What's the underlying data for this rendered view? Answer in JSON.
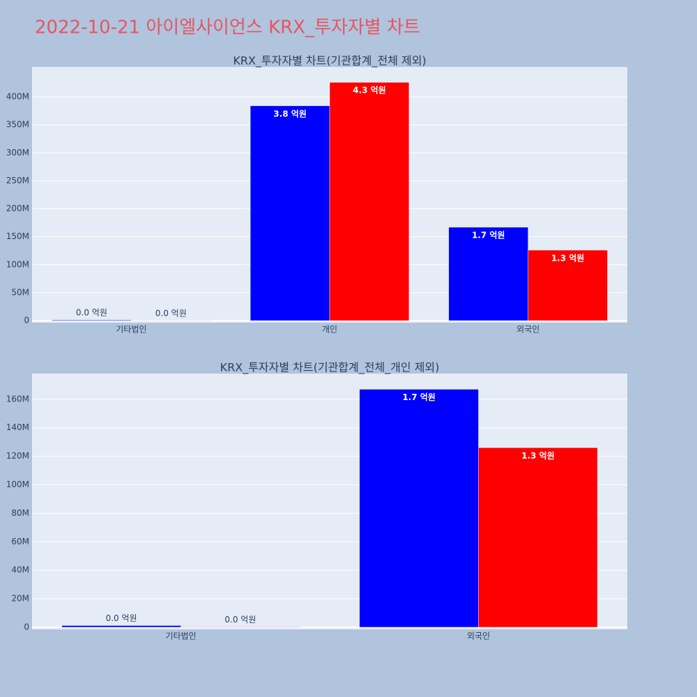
{
  "title": "2022-10-21 아이엘사이언스 KRX_투자자별 차트",
  "chart_data": [
    {
      "type": "bar",
      "title": "KRX_투자자별 차트(기관합계_전체 제외)",
      "categories": [
        "기타법인",
        "개인",
        "외국인"
      ],
      "series": [
        {
          "color": "#0000ff",
          "values": [
            1200000,
            384000000,
            167000000
          ],
          "value_labels": [
            "0.0 억원",
            "3.8 억원",
            "1.7 억원"
          ]
        },
        {
          "color": "#ff0000",
          "values": [
            300000,
            426000000,
            126000000
          ],
          "value_labels": [
            "0.0 억원",
            "4.3 억원",
            "1.3 억원"
          ]
        }
      ],
      "ylim": [
        -3700000,
        453600000
      ],
      "yticks": [
        0,
        {
          "value": 50000000,
          "label": "50M"
        },
        {
          "value": 100000000,
          "label": "100M"
        },
        {
          "value": 150000000,
          "label": "150M"
        },
        {
          "value": 200000000,
          "label": "200M"
        },
        {
          "value": 250000000,
          "label": "250M"
        },
        {
          "value": 300000000,
          "label": "300M"
        },
        {
          "value": 350000000,
          "label": "350M"
        },
        {
          "value": 400000000,
          "label": "400M"
        }
      ],
      "grid": true
    },
    {
      "type": "bar",
      "title": "KRX_투자자별 차트(기관합계_전체_개인 제외)",
      "categories": [
        "기타법인",
        "외국인"
      ],
      "series": [
        {
          "color": "#0000ff",
          "values": [
            1200000,
            167000000
          ],
          "value_labels": [
            "0.0 억원",
            "1.7 억원"
          ]
        },
        {
          "color": "#ff0000",
          "values": [
            300000,
            126000000
          ],
          "value_labels": [
            "0.0 억원",
            "1.3 억원"
          ]
        }
      ],
      "ylim": [
        -1500000,
        178000000
      ],
      "yticks": [
        0,
        {
          "value": 20000000,
          "label": "20M"
        },
        {
          "value": 40000000,
          "label": "40M"
        },
        {
          "value": 60000000,
          "label": "60M"
        },
        {
          "value": 80000000,
          "label": "80M"
        },
        {
          "value": 100000000,
          "label": "100M"
        },
        {
          "value": 120000000,
          "label": "120M"
        },
        {
          "value": 140000000,
          "label": "140M"
        },
        {
          "value": 160000000,
          "label": "160M"
        }
      ],
      "grid": true
    }
  ]
}
